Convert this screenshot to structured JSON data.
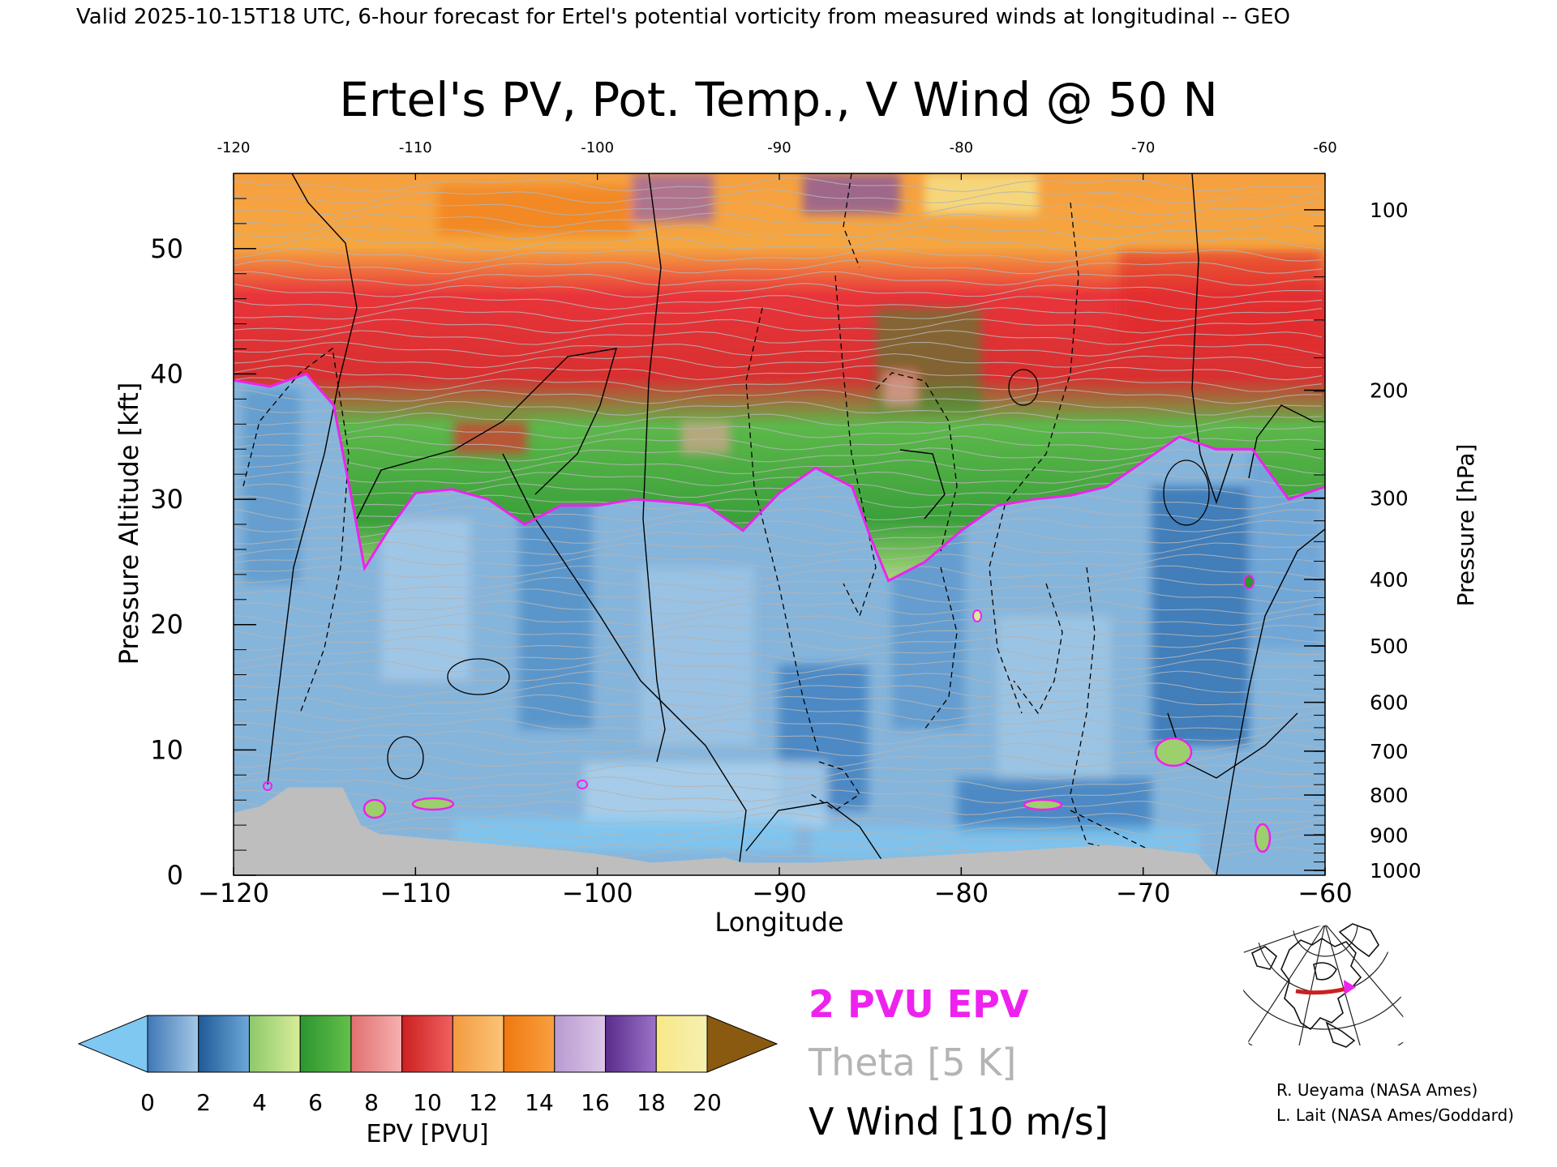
{
  "header": {
    "banner": "Valid 2025-10-15T18 UTC, 6-hour forecast for Ertel's potential vorticity from measured winds at longitudinal -- GEO"
  },
  "chart_data": {
    "type": "heatmap",
    "title": "Ertel's PV, Pot. Temp., V Wind @ 50 N",
    "xlabel": "Longitude",
    "ylabel": "Pressure Altitude [kft]",
    "y2label": "Pressure [hPa]",
    "xlim": [
      -120,
      -60
    ],
    "ylim": [
      0,
      56
    ],
    "x_ticks": [
      -120,
      -110,
      -100,
      -90,
      -80,
      -70,
      -60
    ],
    "x_tick_labels": [
      "−120",
      "−110",
      "−100",
      "−90",
      "−80",
      "−70",
      "−60"
    ],
    "top_ticks": [
      -120,
      -110,
      -100,
      -90,
      -80,
      -70,
      -60
    ],
    "top_tick_labels": [
      "-120",
      "-110",
      "-100",
      "-90",
      "-80",
      "-70",
      "-60"
    ],
    "y_ticks": [
      0,
      10,
      20,
      30,
      40,
      50
    ],
    "y_tick_labels": [
      "0",
      "10",
      "20",
      "30",
      "40",
      "50"
    ],
    "pressure_ticks": [
      {
        "hpa": 100,
        "kft": 53.1
      },
      {
        "hpa": 200,
        "kft": 38.7
      },
      {
        "hpa": 300,
        "kft": 30.1
      },
      {
        "hpa": 400,
        "kft": 23.6
      },
      {
        "hpa": 500,
        "kft": 18.3
      },
      {
        "hpa": 600,
        "kft": 13.8
      },
      {
        "hpa": 700,
        "kft": 9.9
      },
      {
        "hpa": 800,
        "kft": 6.4
      },
      {
        "hpa": 900,
        "kft": 3.2
      },
      {
        "hpa": 1000,
        "kft": 0.4
      }
    ],
    "pressure_tick_labels": [
      "100",
      "200",
      "300",
      "400",
      "500",
      "600",
      "700",
      "800",
      "900",
      "1000"
    ],
    "tropopause_2pvu_kft": [
      [
        -120,
        39.5
      ],
      [
        -118,
        39.0
      ],
      [
        -116,
        40.0
      ],
      [
        -114.5,
        37.5
      ],
      [
        -113.5,
        30.0
      ],
      [
        -112.8,
        24.5
      ],
      [
        -111.5,
        27.5
      ],
      [
        -110,
        30.5
      ],
      [
        -108,
        30.8
      ],
      [
        -106,
        30.0
      ],
      [
        -104,
        28.0
      ],
      [
        -102,
        29.5
      ],
      [
        -100,
        29.5
      ],
      [
        -98,
        30.0
      ],
      [
        -96,
        29.8
      ],
      [
        -94,
        29.5
      ],
      [
        -92,
        27.5
      ],
      [
        -90,
        30.5
      ],
      [
        -88,
        32.5
      ],
      [
        -86,
        31.0
      ],
      [
        -85,
        27.0
      ],
      [
        -84,
        23.5
      ],
      [
        -82,
        25.0
      ],
      [
        -80,
        27.5
      ],
      [
        -78,
        29.5
      ],
      [
        -76,
        30.0
      ],
      [
        -74,
        30.3
      ],
      [
        -72,
        31.0
      ],
      [
        -70,
        33.0
      ],
      [
        -68,
        35.0
      ],
      [
        -66,
        34.0
      ],
      [
        -64,
        34.0
      ],
      [
        -62,
        30.0
      ],
      [
        -60,
        31.0
      ]
    ],
    "terrain_kft": [
      [
        -120,
        5.0
      ],
      [
        -118.5,
        5.5
      ],
      [
        -117,
        7.0
      ],
      [
        -114,
        7.0
      ],
      [
        -113,
        4.0
      ],
      [
        -112,
        3.3
      ],
      [
        -106,
        2.5
      ],
      [
        -102,
        2.0
      ],
      [
        -100,
        1.7
      ],
      [
        -97,
        1.0
      ],
      [
        -93,
        1.4
      ],
      [
        -92,
        1.0
      ],
      [
        -88,
        1.0
      ],
      [
        -72,
        2.4
      ],
      [
        -70,
        2.2
      ],
      [
        -67,
        1.7
      ],
      [
        -66,
        0.0
      ],
      [
        -60,
        0.0
      ]
    ],
    "colorbar": {
      "label": "EPV [PVU]",
      "ticks": [
        0,
        2,
        4,
        6,
        8,
        10,
        12,
        14,
        16,
        18,
        20
      ],
      "tick_labels": [
        "0",
        "2",
        "4",
        "6",
        "8",
        "10",
        "12",
        "14",
        "16",
        "18",
        "20"
      ],
      "bins": [
        [
          "#3f78b6",
          "#a4c8e6"
        ],
        [
          "#1f5a98",
          "#6ea8d8"
        ],
        [
          "#8dc96a",
          "#d9ec9a"
        ],
        [
          "#2c9630",
          "#64bf4a"
        ],
        [
          "#e07070",
          "#f7b0b0"
        ],
        [
          "#cc2020",
          "#f06060"
        ],
        [
          "#f39a40",
          "#fcc478"
        ],
        [
          "#f07810",
          "#f8a040"
        ],
        [
          "#b89ad0",
          "#dcc8e8"
        ],
        [
          "#5a2c8c",
          "#9a74c8"
        ],
        [
          "#f8e888",
          "#f6f0b0"
        ]
      ],
      "under_color": "#7ec8f2",
      "over_color": "#8a5a10"
    },
    "legend": [
      {
        "label": "2 PVU EPV",
        "color": "#ee22ee"
      },
      {
        "label": "Theta [5 K]",
        "color": "#b4b4b4"
      },
      {
        "label": "V Wind [10 m/s]",
        "color": "#000000"
      }
    ]
  },
  "credits": {
    "line1": "R. Ueyama (NASA Ames)",
    "line2": "L. Lait (NASA Ames/Goddard)"
  },
  "map_inset": {
    "track_color": "#cc2020",
    "marker_color": "#ee22ee"
  }
}
